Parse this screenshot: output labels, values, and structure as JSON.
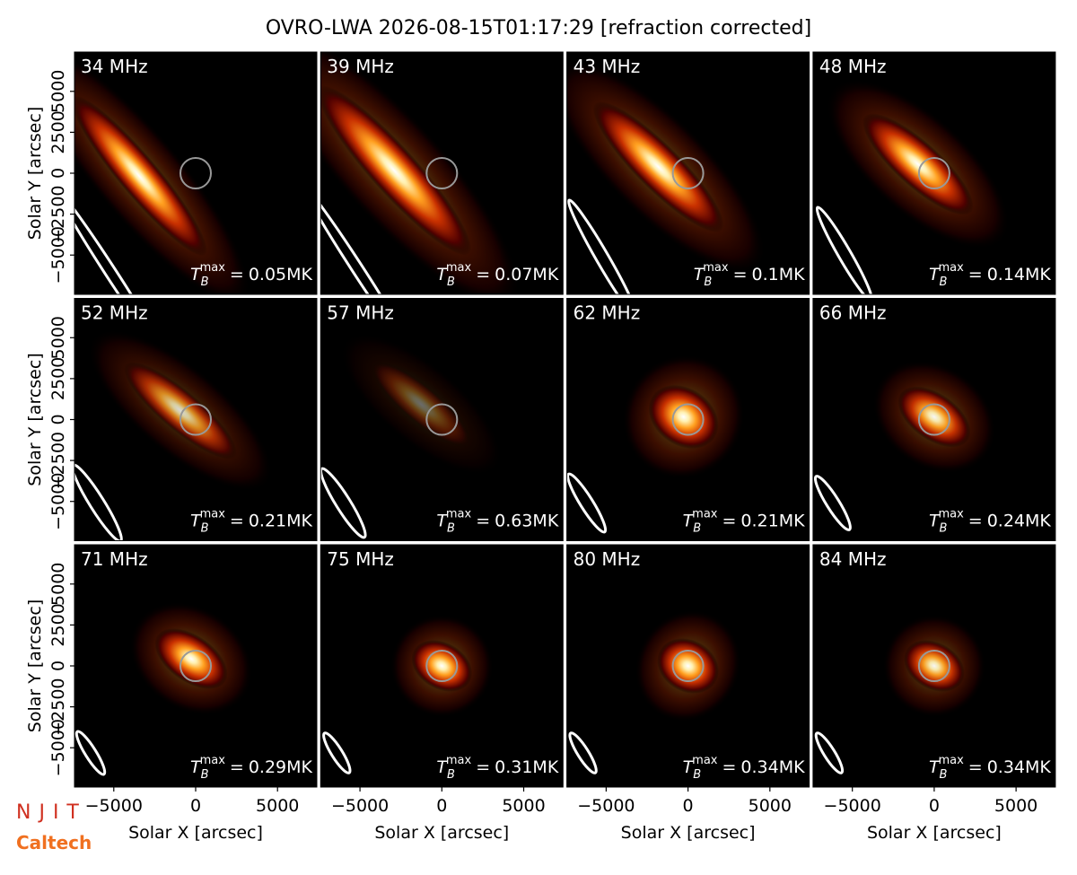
{
  "title": "OVRO-LWA 2026-08-15T01:17:29 [refraction corrected]",
  "logos": {
    "njit": "NJIT",
    "caltech": "Caltech"
  },
  "tb_prefix": {
    "symbol": "T",
    "sub": "B",
    "sup": "max",
    "eq": "="
  },
  "chart_data": [
    {
      "type": "image",
      "label": "34 MHz",
      "tb_max": "0.05MK",
      "xlim": [
        -7400,
        7400
      ],
      "ylim": [
        -7400,
        7400
      ],
      "ylabel": "Solar Y [arcsec]",
      "yticks": [
        {
          "value": -5000,
          "label": "−5000"
        },
        {
          "value": -2500,
          "label": "−2500"
        },
        0,
        2500,
        5000
      ]
    },
    {
      "type": "image",
      "label": "39 MHz",
      "tb_max": "0.07MK",
      "xlim": [
        -7400,
        7400
      ],
      "ylim": [
        -7400,
        7400
      ]
    },
    {
      "type": "image",
      "label": "43 MHz",
      "tb_max": "0.1MK",
      "xlim": [
        -7400,
        7400
      ],
      "ylim": [
        -7400,
        7400
      ]
    },
    {
      "type": "image",
      "label": "48 MHz",
      "tb_max": "0.14MK",
      "xlim": [
        -7400,
        7400
      ],
      "ylim": [
        -7400,
        7400
      ]
    },
    {
      "type": "image",
      "label": "52 MHz",
      "tb_max": "0.21MK",
      "xlim": [
        -7400,
        7400
      ],
      "ylim": [
        -7400,
        7400
      ],
      "ylabel": "Solar Y [arcsec]",
      "yticks": [
        {
          "value": -5000,
          "label": "−5000"
        },
        {
          "value": -2500,
          "label": "−2500"
        },
        0,
        2500,
        5000
      ]
    },
    {
      "type": "image",
      "label": "57 MHz",
      "tb_max": "0.63MK",
      "xlim": [
        -7400,
        7400
      ],
      "ylim": [
        -7400,
        7400
      ]
    },
    {
      "type": "image",
      "label": "62 MHz",
      "tb_max": "0.21MK",
      "xlim": [
        -7400,
        7400
      ],
      "ylim": [
        -7400,
        7400
      ]
    },
    {
      "type": "image",
      "label": "66 MHz",
      "tb_max": "0.24MK",
      "xlim": [
        -7400,
        7400
      ],
      "ylim": [
        -7400,
        7400
      ]
    },
    {
      "type": "image",
      "label": "71 MHz",
      "tb_max": "0.29MK",
      "xlim": [
        -7400,
        7400
      ],
      "ylim": [
        -7400,
        7400
      ],
      "ylabel": "Solar Y [arcsec]",
      "yticks": [
        {
          "value": -5000,
          "label": "−5000"
        },
        {
          "value": -2500,
          "label": "−2500"
        },
        0,
        2500,
        5000
      ],
      "xlabel": "Solar X [arcsec]",
      "xticks": [
        {
          "value": -5000,
          "label": "−5000"
        },
        0,
        5000
      ]
    },
    {
      "type": "image",
      "label": "75 MHz",
      "tb_max": "0.31MK",
      "xlim": [
        -7400,
        7400
      ],
      "ylim": [
        -7400,
        7400
      ],
      "xlabel": "Solar X [arcsec]",
      "xticks": [
        {
          "value": -5000,
          "label": "−5000"
        },
        0,
        5000
      ]
    },
    {
      "type": "image",
      "label": "80 MHz",
      "tb_max": "0.34MK",
      "xlim": [
        -7400,
        7400
      ],
      "ylim": [
        -7400,
        7400
      ],
      "xlabel": "Solar X [arcsec]",
      "xticks": [
        {
          "value": -5000,
          "label": "−5000"
        },
        0,
        5000
      ]
    },
    {
      "type": "image",
      "label": "84 MHz",
      "tb_max": "0.34MK",
      "xlim": [
        -7400,
        7400
      ],
      "ylim": [
        -7400,
        7400
      ],
      "xlabel": "Solar X [arcsec]",
      "xticks": [
        {
          "value": -5000,
          "label": "−5000"
        },
        0,
        5000
      ]
    }
  ]
}
